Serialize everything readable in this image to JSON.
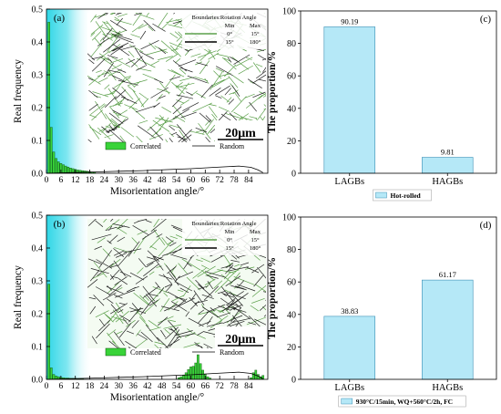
{
  "chart_data": [
    {
      "panel": "(a)",
      "type": "bar",
      "xlabel": "Misorientation angle/°",
      "ylabel": "Real frequency",
      "xlim": [
        0,
        92
      ],
      "ylim": [
        0,
        0.5
      ],
      "xticks": [
        "0",
        "6",
        "12",
        "18",
        "24",
        "30",
        "36",
        "42",
        "48",
        "54",
        "60",
        "66",
        "72",
        "78",
        "84"
      ],
      "yticks": [
        "0.0",
        "0.1",
        "0.2",
        "0.3",
        "0.4",
        "0.5"
      ],
      "legend": {
        "correlated": "Correlated",
        "random": "Random"
      },
      "series": [
        {
          "name": "Correlated",
          "x": [
            1,
            2,
            3,
            4,
            5,
            6,
            7,
            8,
            9,
            10,
            11,
            12,
            13,
            14,
            15,
            16,
            17,
            18,
            19,
            20
          ],
          "values": [
            0.46,
            0.14,
            0.065,
            0.045,
            0.035,
            0.03,
            0.026,
            0.022,
            0.019,
            0.016,
            0.014,
            0.012,
            0.01,
            0.009,
            0.008,
            0.007,
            0.006,
            0.005,
            0.004,
            0.003
          ]
        },
        {
          "name": "Random",
          "x": [
            0,
            10,
            20,
            30,
            40,
            50,
            60,
            70,
            80,
            85,
            88,
            90
          ],
          "values": [
            0.0,
            0.002,
            0.004,
            0.006,
            0.008,
            0.011,
            0.014,
            0.018,
            0.022,
            0.018,
            0.01,
            0.002
          ]
        }
      ],
      "inset": {
        "title": "Boundaries:Rotation Angle",
        "min_label": "Min",
        "max_label": "Max",
        "rows": [
          {
            "min": "0°",
            "max": "15°",
            "color": "#5ca04b"
          },
          {
            "min": "15°",
            "max": "180°",
            "color": "#000000"
          }
        ],
        "scale_bar": "20μm"
      }
    },
    {
      "panel": "(b)",
      "type": "bar",
      "xlabel": "Misorientation angle/°",
      "ylabel": "Real frequency",
      "xlim": [
        0,
        92
      ],
      "ylim": [
        0,
        0.5
      ],
      "xticks": [
        "0",
        "6",
        "12",
        "18",
        "24",
        "30",
        "36",
        "42",
        "48",
        "54",
        "60",
        "66",
        "72",
        "78",
        "84"
      ],
      "yticks": [
        "0.0",
        "0.1",
        "0.2",
        "0.3",
        "0.4",
        "0.5"
      ],
      "legend": {
        "correlated": "Correlated",
        "random": "Random"
      },
      "series": [
        {
          "name": "Correlated",
          "x": [
            1,
            2,
            3,
            4,
            5,
            6,
            7,
            8,
            9,
            10,
            11,
            12,
            13,
            14,
            15,
            55,
            56,
            57,
            58,
            59,
            60,
            61,
            62,
            63,
            64,
            65,
            66,
            67,
            68,
            85,
            86,
            87,
            88,
            89,
            90
          ],
          "values": [
            0.29,
            0.035,
            0.015,
            0.01,
            0.008,
            0.006,
            0.005,
            0.004,
            0.004,
            0.003,
            0.003,
            0.003,
            0.002,
            0.002,
            0.002,
            0.005,
            0.008,
            0.012,
            0.02,
            0.03,
            0.038,
            0.04,
            0.05,
            0.075,
            0.048,
            0.028,
            0.015,
            0.008,
            0.004,
            0.005,
            0.02,
            0.028,
            0.015,
            0.008,
            0.012
          ]
        },
        {
          "name": "Random",
          "x": [
            0,
            10,
            20,
            30,
            40,
            50,
            60,
            70,
            80,
            85,
            88,
            90
          ],
          "values": [
            0.0,
            0.002,
            0.004,
            0.006,
            0.008,
            0.011,
            0.014,
            0.018,
            0.022,
            0.018,
            0.01,
            0.002
          ]
        }
      ],
      "inset": {
        "title": "Boundaries:Rotation Angle",
        "min_label": "Min",
        "max_label": "Max",
        "rows": [
          {
            "min": "0°",
            "max": "15°",
            "color": "#5ca04b"
          },
          {
            "min": "15°",
            "max": "180°",
            "color": "#000000"
          }
        ],
        "scale_bar": "20μm"
      }
    },
    {
      "panel": "(c)",
      "type": "bar",
      "ylabel": "The proportion/%",
      "categories": [
        "LAGBs",
        "HAGBs"
      ],
      "values": [
        90.19,
        9.81
      ],
      "value_labels": [
        "90.19",
        "9.81"
      ],
      "ylim": [
        0,
        100
      ],
      "yticks": [
        "0",
        "20",
        "40",
        "60",
        "80",
        "100"
      ],
      "legend": "Hot-rolled"
    },
    {
      "panel": "(d)",
      "type": "bar",
      "ylabel": "The proportion/%",
      "categories": [
        "LAGBs",
        "HAGBs"
      ],
      "values": [
        38.83,
        61.17
      ],
      "value_labels": [
        "38.83",
        "61.17"
      ],
      "ylim": [
        0,
        100
      ],
      "yticks": [
        "0",
        "20",
        "40",
        "60",
        "80",
        "100"
      ],
      "legend": "930°C/15min, WQ+560°C/2h, FC"
    }
  ],
  "colors": {
    "hist_bar": "#39d339",
    "cyan_band": "#2fd6e6",
    "prop_bar": "#b5e8f7",
    "lagb_line": "#5ca04b"
  }
}
